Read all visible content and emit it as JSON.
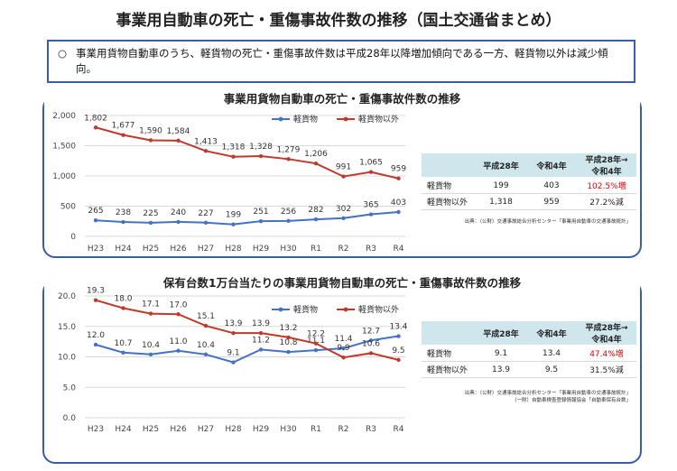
{
  "page_title": "事業用自動車の死亡・重傷事故件数の推移（国土交通省まとめ）",
  "summary": {
    "bullet": "○",
    "text": "事業用貨物自動車のうち、軽貨物の死亡・重傷事故件数は平成28年以降増加傾向である一方、軽貨物以外は減少傾向。"
  },
  "chart_data": [
    {
      "type": "line",
      "title": "事業用貨物自動車の死亡・重傷事故件数の推移",
      "categories": [
        "H23",
        "H24",
        "H25",
        "H26",
        "H27",
        "H28",
        "H29",
        "H30",
        "R1",
        "R2",
        "R3",
        "R4"
      ],
      "series": [
        {
          "name": "軽貨物",
          "color": "#4472c4",
          "values": [
            265,
            238,
            225,
            240,
            227,
            199,
            251,
            256,
            282,
            302,
            365,
            403
          ],
          "labels": [
            "265",
            "238",
            "225",
            "240",
            "227",
            "199",
            "251",
            "256",
            "282",
            "302",
            "365",
            "403"
          ]
        },
        {
          "name": "軽貨物以外",
          "color": "#c0392b",
          "values": [
            1802,
            1677,
            1590,
            1584,
            1413,
            1318,
            1328,
            1279,
            1206,
            991,
            1065,
            959
          ],
          "labels": [
            "1,802",
            "1,677",
            "1,590",
            "1,584",
            "1,413",
            "1,318",
            "1,328",
            "1,279",
            "1,206",
            "991",
            "1,065",
            "959"
          ]
        }
      ],
      "ylim": [
        0,
        2000
      ],
      "yticks": [
        0,
        500,
        1000,
        1500,
        2000
      ],
      "ytick_labels": [
        "0",
        "500",
        "1,000",
        "1,500",
        "2,000"
      ],
      "grid": true,
      "legend": "top-right",
      "table": {
        "headers": [
          "",
          "平成28年",
          "令和4年",
          "平成28年→令和4年"
        ],
        "rows": [
          [
            "軽貨物",
            "199",
            "403",
            "102.5%増"
          ],
          [
            "軽貨物以外",
            "1,318",
            "959",
            "27.2%減"
          ]
        ]
      },
      "source": "出典：（公財）交通事故総合分析センター「事業用自動車の交通事故統計」"
    },
    {
      "type": "line",
      "title": "保有台数1万台当たりの事業用貨物自動車の死亡・重傷事故件数の推移",
      "categories": [
        "H23",
        "H24",
        "H25",
        "H26",
        "H27",
        "H28",
        "H29",
        "H30",
        "R1",
        "R2",
        "R3",
        "R4"
      ],
      "series": [
        {
          "name": "軽貨物",
          "color": "#4472c4",
          "values": [
            12.0,
            10.7,
            10.4,
            11.0,
            10.4,
            9.1,
            11.2,
            10.8,
            11.1,
            11.4,
            12.7,
            13.4
          ],
          "labels": [
            "12.0",
            "10.7",
            "10.4",
            "11.0",
            "10.4",
            "9.1",
            "11.2",
            "10.8",
            "11.1",
            "11.4",
            "12.7",
            "13.4"
          ]
        },
        {
          "name": "軽貨物以外",
          "color": "#c0392b",
          "values": [
            19.3,
            18.0,
            17.1,
            17.0,
            15.1,
            13.9,
            13.9,
            13.2,
            12.2,
            9.9,
            10.6,
            9.5
          ],
          "labels": [
            "19.3",
            "18.0",
            "17.1",
            "17.0",
            "15.1",
            "13.9",
            "13.9",
            "13.2",
            "12.2",
            "9.9",
            "10.6",
            "9.5"
          ]
        }
      ],
      "ylim": [
        0,
        20
      ],
      "yticks": [
        0,
        5,
        10,
        15,
        20
      ],
      "ytick_labels": [
        "0.0",
        "5.0",
        "10.0",
        "15.0",
        "20.0"
      ],
      "grid": true,
      "legend": "top-right",
      "table": {
        "headers": [
          "",
          "平成28年",
          "令和4年",
          "平成28年→令和4年"
        ],
        "rows": [
          [
            "軽貨物",
            "9.1",
            "13.4",
            "47.4%増"
          ],
          [
            "軽貨物以外",
            "13.9",
            "9.5",
            "31.5%減"
          ]
        ]
      },
      "source": "出典：（公財）交通事故総合分析センター「事業用自動車の交通事故統計」\n（一財）自動車検査登録情報協会「自動車保有台数」"
    }
  ]
}
